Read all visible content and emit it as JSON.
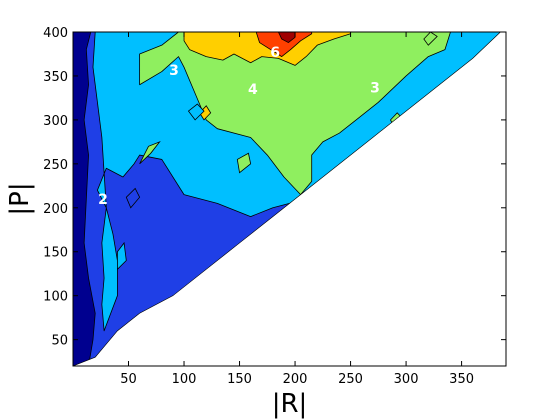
{
  "chart_data": {
    "type": "contour",
    "title": "",
    "xlabel": "|R|",
    "ylabel": "|P|",
    "xlim": [
      0,
      390
    ],
    "ylim": [
      20,
      400
    ],
    "xticks": [
      50,
      100,
      150,
      200,
      250,
      300,
      350
    ],
    "yticks": [
      50,
      100,
      150,
      200,
      250,
      300,
      350,
      400
    ],
    "levels": [
      1,
      2,
      3,
      4,
      5,
      6,
      7
    ],
    "level_colors": [
      "#00008f",
      "#1f3fe6",
      "#00bfff",
      "#8fef5f",
      "#ffcf00",
      "#ff4000",
      "#a00000"
    ],
    "domain_boundary": [
      [
        0,
        20
      ],
      [
        20,
        30
      ],
      [
        40,
        60
      ],
      [
        60,
        80
      ],
      [
        90,
        100
      ],
      [
        120,
        130
      ],
      [
        150,
        160
      ],
      [
        180,
        190
      ],
      [
        210,
        220
      ],
      [
        240,
        250
      ],
      [
        270,
        280
      ],
      [
        300,
        310
      ],
      [
        330,
        340
      ],
      [
        360,
        370
      ],
      [
        385,
        400
      ]
    ],
    "regions": [
      {
        "level": 1,
        "x_range": [
          0,
          15
        ],
        "y_range": [
          20,
          400
        ]
      },
      {
        "level": 2,
        "x_range": [
          10,
          60
        ],
        "y_range": [
          60,
          400
        ]
      },
      {
        "level": 3,
        "x_range": [
          30,
          380
        ],
        "y_range": [
          150,
          400
        ]
      },
      {
        "level": 4,
        "x_range": [
          60,
          350
        ],
        "y_range": [
          240,
          400
        ]
      },
      {
        "level": 5,
        "x_range": [
          100,
          250
        ],
        "y_range": [
          340,
          400
        ]
      },
      {
        "level": 6,
        "x_range": [
          165,
          215
        ],
        "y_range": [
          365,
          400
        ]
      },
      {
        "level": 7,
        "x_range": [
          185,
          200
        ],
        "y_range": [
          385,
          400
        ]
      }
    ],
    "contour_labels": [
      {
        "text": "2",
        "x": 27,
        "y": 210
      },
      {
        "text": "3",
        "x": 91,
        "y": 357
      },
      {
        "text": "4",
        "x": 162,
        "y": 335
      },
      {
        "text": "6",
        "x": 182,
        "y": 377
      },
      {
        "text": "3",
        "x": 272,
        "y": 337
      }
    ],
    "grid": false,
    "legend": "none"
  }
}
